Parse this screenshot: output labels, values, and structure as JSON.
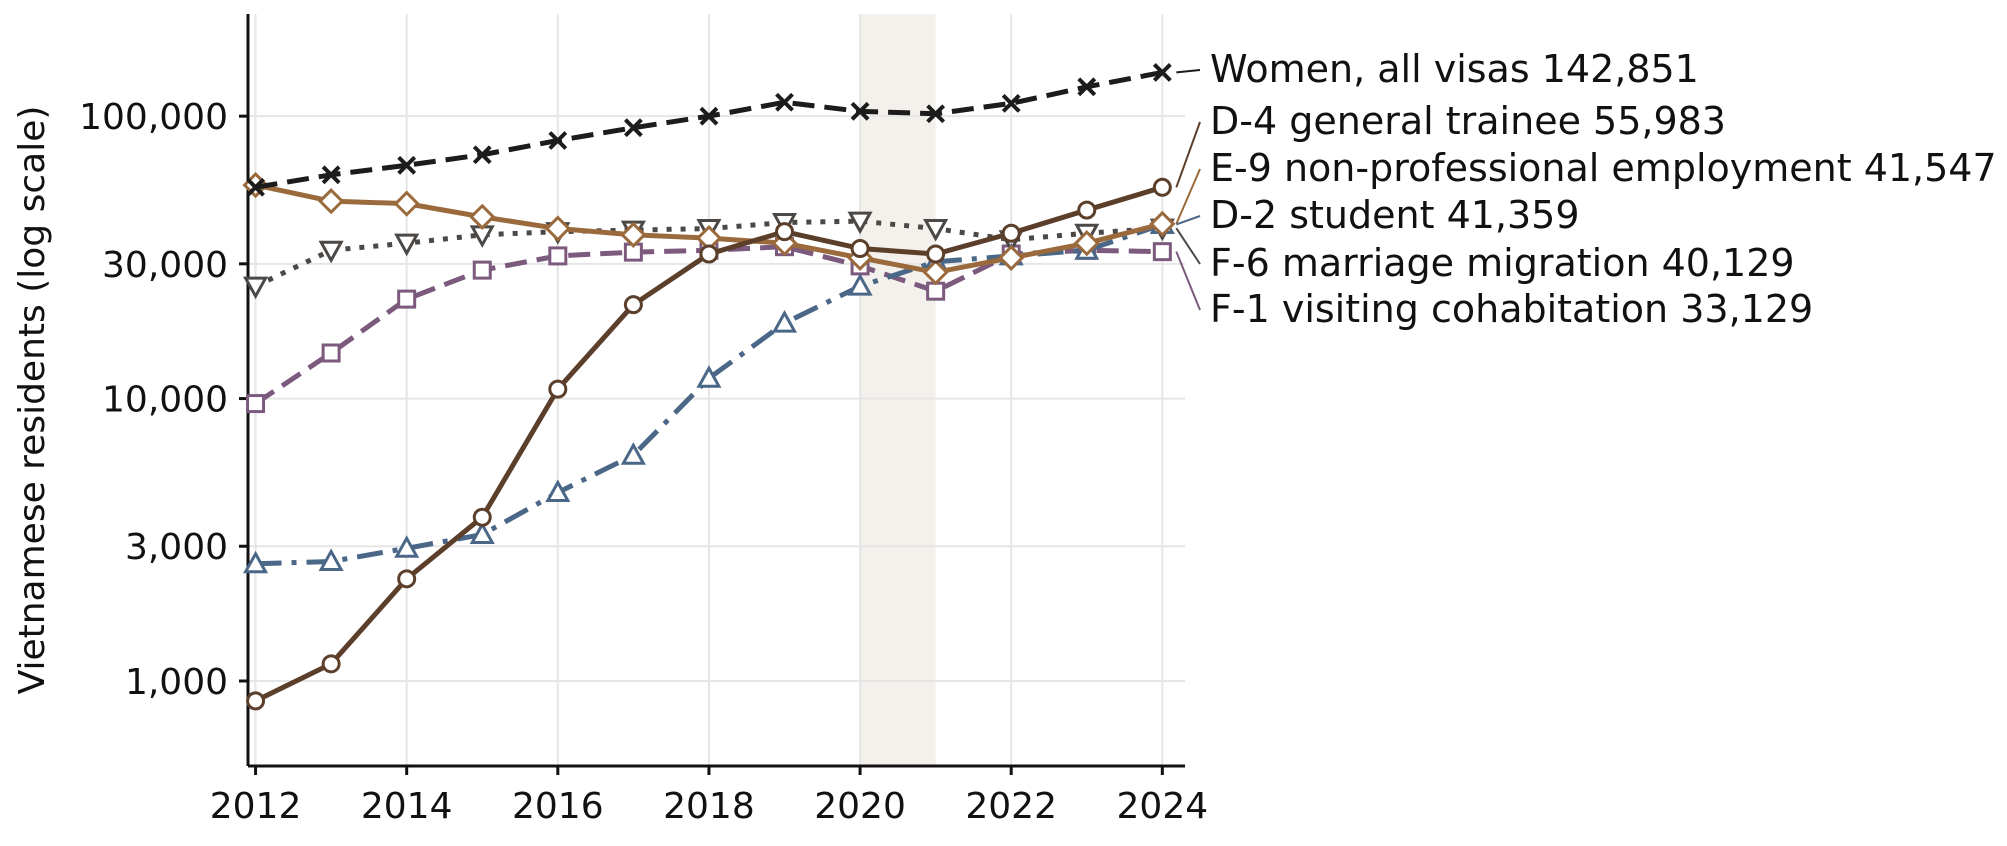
{
  "chart_data": {
    "type": "line",
    "title": "",
    "xlabel": "",
    "ylabel": "Vietnamese residents (log scale)",
    "y_scale": "log",
    "x_ticks": [
      2012,
      2014,
      2016,
      2018,
      2020,
      2022,
      2024
    ],
    "y_ticks": [
      {
        "value": 1000,
        "label": "1,000"
      },
      {
        "value": 3000,
        "label": "3,000"
      },
      {
        "value": 10000,
        "label": "10,000"
      },
      {
        "value": 30000,
        "label": "30,000"
      },
      {
        "value": 100000,
        "label": "100,000"
      }
    ],
    "xlim": [
      2011.9,
      2024.3
    ],
    "ylim": [
      500,
      230000
    ],
    "grid": true,
    "shaded_period": [
      2020,
      2021
    ],
    "shaded_color": "#f4f1ec",
    "x": [
      2012,
      2013,
      2014,
      2015,
      2016,
      2017,
      2018,
      2019,
      2020,
      2021,
      2022,
      2023,
      2024
    ],
    "series": [
      {
        "name": "Women, all visas",
        "end_label": "Women, all visas  142,851",
        "color": "#1c1c1c",
        "dash": "22,10",
        "marker": "x",
        "values": [
          56000,
          62000,
          67000,
          73000,
          82000,
          91000,
          100000,
          112000,
          104000,
          102000,
          111000,
          127000,
          142851
        ]
      },
      {
        "name": "D-4 general trainee",
        "end_label": "D-4 general trainee  55,983",
        "color": "#5c3f2a",
        "dash": "",
        "marker": "circle",
        "values": [
          850,
          1150,
          2300,
          3800,
          10800,
          21500,
          32500,
          39000,
          34000,
          32500,
          38500,
          46500,
          55983
        ]
      },
      {
        "name": "E-9 non-professional employment",
        "end_label": "E-9 non-professional employment  41,547",
        "color": "#9a6a3c",
        "dash": "",
        "marker": "diamond",
        "values": [
          57000,
          50000,
          49000,
          44000,
          40000,
          38000,
          37000,
          35500,
          31500,
          28000,
          31500,
          35500,
          41547
        ]
      },
      {
        "name": "D-2 student",
        "end_label": "D-2 student  41,359",
        "color": "#4a6787",
        "dash": "26,10,5,10",
        "marker": "triangle-up",
        "values": [
          2600,
          2650,
          2950,
          3300,
          4650,
          6300,
          11800,
          18500,
          25000,
          30500,
          32000,
          33500,
          41359
        ]
      },
      {
        "name": "F-6 marriage migration",
        "end_label": "F-6 marriage migration  40,129",
        "color": "#4b4845",
        "dash": "5,9",
        "marker": "triangle-down",
        "values": [
          25000,
          33500,
          35500,
          38000,
          39000,
          39500,
          40000,
          42000,
          42500,
          40000,
          36500,
          38500,
          40129
        ]
      },
      {
        "name": "F-1 visiting cohabitation",
        "end_label": "F-1 visiting cohabitation  33,129",
        "color": "#7b5a7e",
        "dash": "22,10",
        "marker": "square",
        "values": [
          9600,
          14500,
          22500,
          28500,
          32000,
          33000,
          33500,
          34500,
          29500,
          24000,
          32500,
          33500,
          33129
        ]
      }
    ],
    "end_label_order": [
      0,
      1,
      2,
      3,
      4,
      5
    ]
  }
}
